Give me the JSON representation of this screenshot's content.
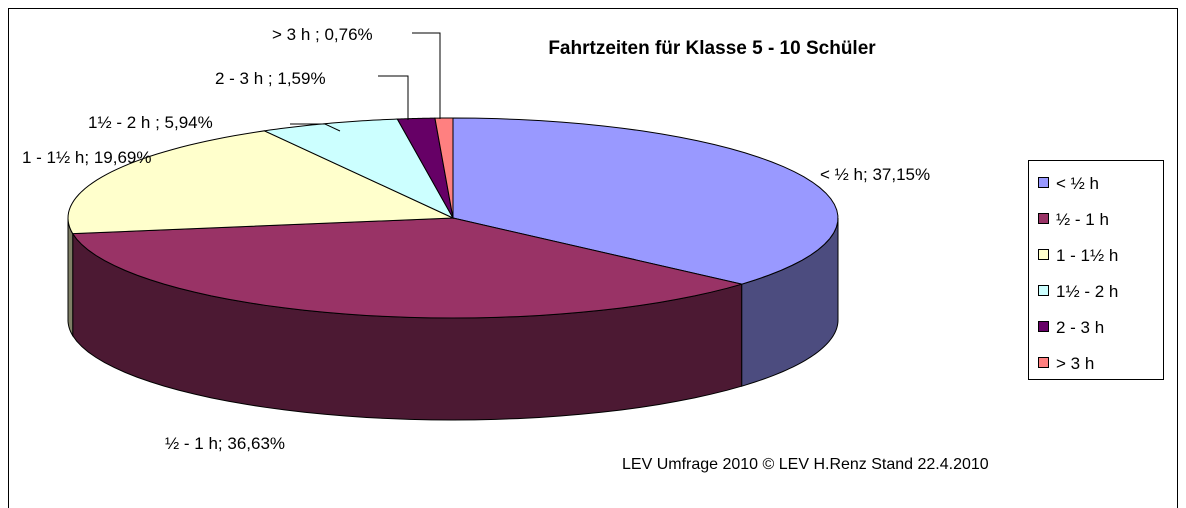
{
  "chart_data": {
    "type": "pie3d",
    "title": "Fahrtzeiten für Klasse 5 - 10 Schüler",
    "note": "LEV Umfrage 2010  © LEV   H.Renz  Stand 22.4.2010",
    "categories": [
      "< ½  h",
      "½ - 1 h",
      "1 - 1½  h",
      "1½ -  2 h",
      "2 - 3 h",
      "> 3 h"
    ],
    "values": [
      37.15,
      36.63,
      19.69,
      5.94,
      1.59,
      0.76
    ],
    "value_labels": [
      "< ½   h; 37,15%",
      "½ - 1 h; 36,63%",
      "1 - 1½  h; 19,69%",
      "1½ -  2 h   ; 5,94%",
      "2 - 3 h   ; 1,59%",
      "> 3 h ; 0,76%"
    ],
    "colors": [
      "#9999ff",
      "#993366",
      "#ffffcc",
      "#ccffff",
      "#660066",
      "#ff8080"
    ],
    "legend": "right"
  }
}
